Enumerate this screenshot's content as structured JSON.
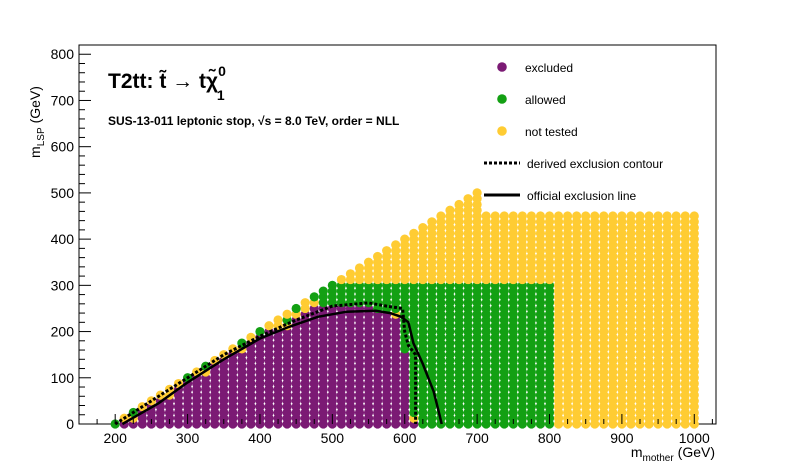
{
  "chart_data": {
    "type": "scatter",
    "title_prefix": "T2tt:",
    "title_formula": "t̃ → tχ̃",
    "title_formula_sup": "0",
    "title_formula_sub": "1",
    "subtitle": "SUS-13-011  leptonic stop,  √s =  8.0 TeV, order =  NLL",
    "xlabel": "m",
    "xlabel_sub": "mother",
    "xlabel_unit": "(GeV)",
    "ylabel": "m",
    "ylabel_sub": "LSP",
    "ylabel_unit": "(GeV)",
    "xlim": [
      150,
      1030
    ],
    "ylim": [
      0,
      820
    ],
    "x_ticks": [
      "200",
      "300",
      "400",
      "500",
      "600",
      "700",
      "800",
      "900",
      "1000"
    ],
    "y_ticks": [
      "0",
      "100",
      "200",
      "300",
      "400",
      "500",
      "600",
      "700",
      "800"
    ],
    "x_step": 12.5,
    "y_step": 12.5,
    "colors": {
      "excluded": "#7b1a74",
      "allowed": "#13a013",
      "not_tested": "#ffcc33",
      "line": "#000000"
    },
    "legend": [
      {
        "key": "excluded",
        "label": "excluded",
        "marker": "dot"
      },
      {
        "key": "allowed",
        "label": "allowed",
        "marker": "dot"
      },
      {
        "key": "not_tested",
        "label": "not tested",
        "marker": "dot"
      },
      {
        "key": "derived",
        "label": "derived exclusion contour",
        "marker": "dashed"
      },
      {
        "key": "official",
        "label": "official exclusion line",
        "marker": "solid"
      }
    ],
    "columns_max_y": [
      [
        200,
        0
      ],
      [
        212.5,
        13
      ],
      [
        225,
        25
      ],
      [
        237.5,
        38
      ],
      [
        250,
        50
      ],
      [
        262.5,
        63
      ],
      [
        275,
        75
      ],
      [
        287.5,
        88
      ],
      [
        300,
        100
      ],
      [
        312.5,
        113
      ],
      [
        325,
        125
      ],
      [
        337.5,
        138
      ],
      [
        350,
        150
      ],
      [
        362.5,
        163
      ],
      [
        375,
        175
      ],
      [
        387.5,
        188
      ],
      [
        400,
        200
      ],
      [
        412.5,
        213
      ],
      [
        425,
        225
      ],
      [
        437.5,
        238
      ],
      [
        450,
        250
      ],
      [
        462.5,
        263
      ],
      [
        475,
        275
      ],
      [
        487.5,
        288
      ],
      [
        500,
        300
      ],
      [
        512.5,
        313
      ],
      [
        525,
        325
      ],
      [
        537.5,
        338
      ],
      [
        550,
        350
      ],
      [
        562.5,
        363
      ],
      [
        575,
        375
      ],
      [
        587.5,
        388
      ],
      [
        600,
        400
      ],
      [
        612.5,
        413
      ],
      [
        625,
        425
      ],
      [
        637.5,
        438
      ],
      [
        650,
        450
      ],
      [
        662.5,
        463
      ],
      [
        675,
        475
      ],
      [
        687.5,
        488
      ],
      [
        700,
        500
      ],
      [
        712.5,
        456
      ],
      [
        725,
        456
      ],
      [
        737.5,
        456
      ],
      [
        750,
        456
      ],
      [
        762.5,
        456
      ],
      [
        775,
        456
      ],
      [
        787.5,
        456
      ],
      [
        800,
        456
      ],
      [
        812.5,
        456
      ],
      [
        825,
        456
      ],
      [
        837.5,
        456
      ],
      [
        850,
        456
      ],
      [
        862.5,
        456
      ],
      [
        875,
        456
      ],
      [
        887.5,
        456
      ],
      [
        900,
        456
      ],
      [
        912.5,
        456
      ],
      [
        925,
        456
      ],
      [
        937.5,
        456
      ],
      [
        950,
        456
      ],
      [
        962.5,
        456
      ],
      [
        975,
        456
      ],
      [
        987.5,
        456
      ],
      [
        1000,
        456
      ]
    ],
    "excluded_region": [
      [
        212.5,
        0
      ],
      [
        225,
        12
      ],
      [
        237.5,
        25
      ],
      [
        250,
        38
      ],
      [
        262.5,
        50
      ],
      [
        275,
        62
      ],
      [
        287.5,
        75
      ],
      [
        300,
        88
      ],
      [
        312.5,
        100
      ],
      [
        325,
        112
      ],
      [
        337.5,
        125
      ],
      [
        350,
        138
      ],
      [
        362.5,
        150
      ],
      [
        375,
        162
      ],
      [
        387.5,
        175
      ],
      [
        400,
        188
      ],
      [
        412.5,
        200
      ],
      [
        425,
        206
      ],
      [
        437.5,
        212
      ],
      [
        450,
        225
      ],
      [
        462.5,
        238
      ],
      [
        475,
        250
      ],
      [
        487.5,
        250
      ],
      [
        500,
        250
      ],
      [
        512.5,
        250
      ],
      [
        525,
        250
      ],
      [
        537.5,
        250
      ],
      [
        550,
        250
      ],
      [
        562.5,
        238
      ],
      [
        575,
        238
      ],
      [
        587.5,
        225
      ],
      [
        600,
        150
      ],
      [
        612.5,
        12
      ]
    ],
    "allowed_region": [
      [
        200,
        0,
        0
      ],
      [
        212.5,
        12,
        12
      ],
      [
        225,
        25,
        25
      ],
      [
        237.5,
        38,
        38
      ],
      [
        262.5,
        62,
        62
      ],
      [
        300,
        100,
        100
      ],
      [
        325,
        125,
        125
      ],
      [
        375,
        175,
        175
      ],
      [
        400,
        200,
        200
      ],
      [
        425,
        212,
        212
      ],
      [
        437.5,
        225,
        225
      ],
      [
        450,
        250,
        250
      ],
      [
        462.5,
        262,
        262
      ],
      [
        475,
        275,
        275
      ],
      [
        487.5,
        262,
        288
      ],
      [
        500,
        262,
        300
      ],
      [
        512.5,
        262,
        300
      ],
      [
        525,
        262,
        300
      ],
      [
        537.5,
        262,
        300
      ],
      [
        550,
        262,
        300
      ],
      [
        562.5,
        250,
        300
      ],
      [
        575,
        250,
        300
      ],
      [
        587.5,
        238,
        300
      ],
      [
        600,
        162,
        300
      ],
      [
        612.5,
        25,
        300
      ],
      [
        625,
        0,
        300
      ],
      [
        637.5,
        0,
        300
      ],
      [
        650,
        0,
        300
      ],
      [
        662.5,
        0,
        300
      ],
      [
        675,
        0,
        300
      ],
      [
        687.5,
        0,
        300
      ],
      [
        700,
        0,
        300
      ],
      [
        712.5,
        0,
        300
      ],
      [
        725,
        0,
        300
      ],
      [
        737.5,
        0,
        300
      ],
      [
        750,
        0,
        300
      ],
      [
        762.5,
        0,
        300
      ],
      [
        775,
        0,
        300
      ],
      [
        787.5,
        0,
        300
      ],
      [
        800,
        0,
        300
      ]
    ],
    "official_line": [
      [
        210,
        0
      ],
      [
        260,
        45
      ],
      [
        300,
        90
      ],
      [
        350,
        140
      ],
      [
        400,
        185
      ],
      [
        440,
        210
      ],
      [
        480,
        232
      ],
      [
        520,
        243
      ],
      [
        560,
        245
      ],
      [
        580,
        240
      ],
      [
        595,
        232
      ],
      [
        605,
        220
      ],
      [
        612,
        175
      ],
      [
        625,
        130
      ],
      [
        640,
        70
      ],
      [
        648,
        20
      ],
      [
        651,
        0
      ]
    ],
    "derived_contour": [
      [
        200,
        0
      ],
      [
        300,
        100
      ],
      [
        350,
        150
      ],
      [
        400,
        190
      ],
      [
        450,
        225
      ],
      [
        500,
        255
      ],
      [
        550,
        262
      ],
      [
        575,
        255
      ],
      [
        597,
        250
      ],
      [
        600,
        200
      ],
      [
        605,
        170
      ],
      [
        615,
        150
      ],
      [
        615,
        0
      ]
    ]
  }
}
